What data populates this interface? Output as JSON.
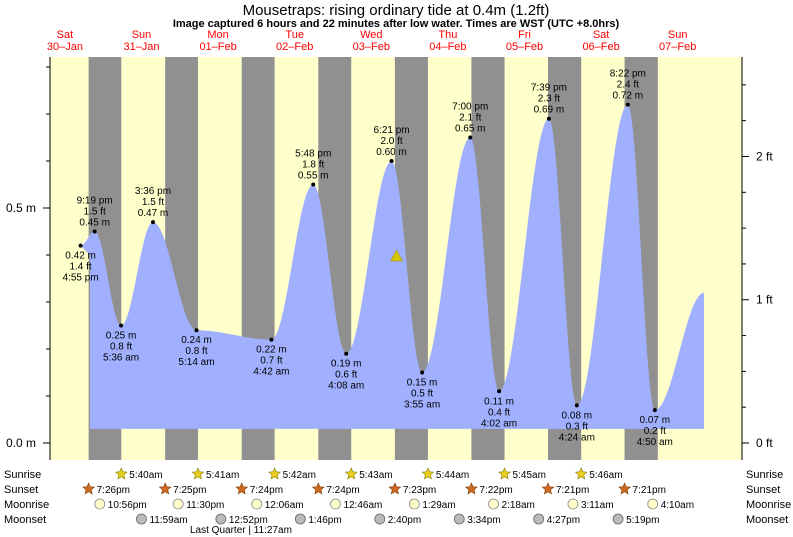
{
  "title": "Mousetraps: rising  ordinary tide at 0.4m (1.2ft)",
  "subtitle": "Image captured 6 hours and 22 minutes after low water. Times are WST (UTC +8.0hrs)",
  "days": [
    {
      "dow": "Sat",
      "date": "30–Jan"
    },
    {
      "dow": "Sun",
      "date": "31–Jan"
    },
    {
      "dow": "Mon",
      "date": "01–Feb"
    },
    {
      "dow": "Tue",
      "date": "02–Feb"
    },
    {
      "dow": "Wed",
      "date": "03–Feb"
    },
    {
      "dow": "Thu",
      "date": "04–Feb"
    },
    {
      "dow": "Fri",
      "date": "05–Feb"
    },
    {
      "dow": "Sat",
      "date": "06–Feb"
    },
    {
      "dow": "Sun",
      "date": "07–Feb"
    }
  ],
  "left_axis": {
    "unit": "m",
    "ticks": [
      "0.0 m",
      "0.5 m"
    ]
  },
  "right_axis": {
    "unit": "ft",
    "ticks": [
      "0 ft",
      "1 ft",
      "2 ft"
    ]
  },
  "row_labels": [
    "Sunrise",
    "Sunset",
    "Moonrise",
    "Moonset"
  ],
  "sunrise": [
    "5:40am",
    "5:41am",
    "5:42am",
    "5:43am",
    "5:44am",
    "5:45am",
    "5:46am"
  ],
  "sunset": [
    "7:26pm",
    "7:25pm",
    "7:24pm",
    "7:24pm",
    "7:23pm",
    "7:22pm",
    "7:21pm",
    "7:21pm"
  ],
  "moonrise": [
    "10:56pm",
    "11:30pm",
    "12:06am",
    "12:46am",
    "1:29am",
    "2:18am",
    "3:11am",
    "4:10am"
  ],
  "moonset": [
    "11:59am",
    "12:52pm",
    "1:46pm",
    "2:40pm",
    "3:34pm",
    "4:27pm",
    "5:19pm"
  ],
  "moon_phase_note": "Last Quarter | 11:27am",
  "colors": {
    "day": "#ffffcc",
    "night": "#909090",
    "water": "#a0b0ff",
    "day_label": "#ff0000",
    "marker": "#d4c400"
  },
  "chart_data": {
    "type": "area",
    "title": "Mousetraps: rising  ordinary tide at 0.4m (1.2ft)",
    "ylabel": "m",
    "y2label": "ft",
    "ylim": [
      0.0,
      0.8
    ],
    "current_height_m": 0.4,
    "extremes": [
      {
        "type": "high",
        "time": "4:55 pm",
        "m": 0.42,
        "ft": 1.4,
        "day": 0
      },
      {
        "type": "high",
        "time": "9:19 pm",
        "m": 0.45,
        "ft": 1.5,
        "day": 0
      },
      {
        "type": "low",
        "time": "5:36 am",
        "m": 0.25,
        "ft": 0.8,
        "day": 1
      },
      {
        "type": "high",
        "time": "3:36 pm",
        "m": 0.47,
        "ft": 1.5,
        "day": 1
      },
      {
        "type": "low",
        "time": "5:14 am",
        "m": 0.24,
        "ft": 0.8,
        "day": 2
      },
      {
        "type": "low",
        "time": "4:42 am",
        "m": 0.22,
        "ft": 0.7,
        "day": 3
      },
      {
        "type": "high",
        "time": "5:48 pm",
        "m": 0.55,
        "ft": 1.8,
        "day": 3
      },
      {
        "type": "low",
        "time": "4:08 am",
        "m": 0.19,
        "ft": 0.6,
        "day": 4
      },
      {
        "type": "high",
        "time": "6:21 pm",
        "m": 0.6,
        "ft": 2.0,
        "day": 4
      },
      {
        "type": "low",
        "time": "3:55 am",
        "m": 0.15,
        "ft": 0.5,
        "day": 5
      },
      {
        "type": "high",
        "time": "7:00 pm",
        "m": 0.65,
        "ft": 2.1,
        "day": 5
      },
      {
        "type": "low",
        "time": "4:02 am",
        "m": 0.11,
        "ft": 0.4,
        "day": 6
      },
      {
        "type": "high",
        "time": "7:39 pm",
        "m": 0.69,
        "ft": 2.3,
        "day": 6
      },
      {
        "type": "low",
        "time": "4:24 am",
        "m": 0.08,
        "ft": 0.3,
        "day": 7
      },
      {
        "type": "high",
        "time": "8:22 pm",
        "m": 0.72,
        "ft": 2.4,
        "day": 7
      },
      {
        "type": "low",
        "time": "4:50 am",
        "m": 0.07,
        "ft": 0.2,
        "day": 8
      }
    ]
  }
}
